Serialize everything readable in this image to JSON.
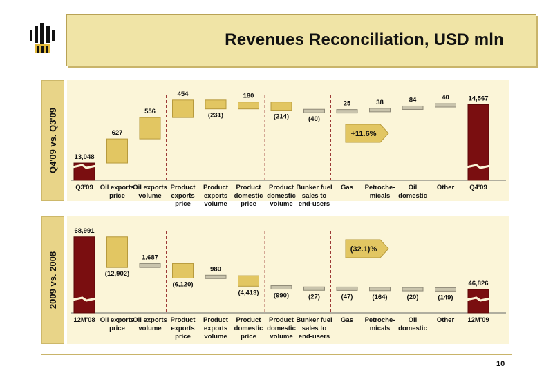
{
  "header": {
    "title": "Revenues Reconciliation, USD mln"
  },
  "colors": {
    "accent": "#7a0e10",
    "step_fill": "#e2c662",
    "step_stroke": "#b79a3c",
    "panel": "#fbf5d8",
    "tab": "#e8d488",
    "divider": "#8b1a1a"
  },
  "page_number": "10",
  "chart_data": [
    {
      "type": "waterfall",
      "side_label": "Q4'09 vs. Q3'09",
      "callout": "+11.6%",
      "categories": [
        [
          "Q3'09"
        ],
        [
          "Oil exports",
          "price"
        ],
        [
          "Oil exports",
          "volume"
        ],
        [
          "Product",
          "exports",
          "price"
        ],
        [
          "Product",
          "exports",
          "volume"
        ],
        [
          "Product",
          "domestic",
          "price"
        ],
        [
          "Product",
          "domestic",
          "volume"
        ],
        [
          "Bunker fuel",
          "sales to",
          "end-users"
        ],
        [
          "Gas"
        ],
        [
          "Petroche-",
          "micals"
        ],
        [
          "Oil",
          "domestic"
        ],
        [
          "Other"
        ],
        [
          "Q4'09"
        ]
      ],
      "values": [
        13048,
        627,
        556,
        454,
        -231,
        180,
        -214,
        -40,
        25,
        38,
        84,
        40,
        14567
      ],
      "labels": [
        "13,048",
        "627",
        "556",
        "454",
        "(231)",
        "180",
        "(214)",
        "(40)",
        "25",
        "38",
        "84",
        "40",
        "14,567"
      ],
      "divider_after": [
        2,
        5,
        7
      ]
    },
    {
      "type": "waterfall",
      "side_label": "2009 vs. 2008",
      "callout": "(32.1)%",
      "categories": [
        [
          "12M'08"
        ],
        [
          "Oil exports",
          "price"
        ],
        [
          "Oil exports",
          "volume"
        ],
        [
          "Product",
          "exports",
          "price"
        ],
        [
          "Product",
          "exports",
          "volume"
        ],
        [
          "Product",
          "domestic",
          "price"
        ],
        [
          "Product",
          "domestic",
          "volume"
        ],
        [
          "Bunker fuel",
          "sales to",
          "end-users"
        ],
        [
          "Gas"
        ],
        [
          "Petroche-",
          "micals"
        ],
        [
          "Oil",
          "domestic"
        ],
        [
          "Other"
        ],
        [
          "12M'09"
        ]
      ],
      "values": [
        68991,
        -12902,
        1687,
        -6120,
        980,
        -4413,
        -990,
        -27,
        -47,
        -164,
        -20,
        -149,
        46826
      ],
      "labels": [
        "68,991",
        "(12,902)",
        "1,687",
        "(6,120)",
        "980",
        "(4,413)",
        "(990)",
        "(27)",
        "(47)",
        "(164)",
        "(20)",
        "(149)",
        "46,826"
      ],
      "divider_after": [
        2,
        5,
        7
      ]
    }
  ]
}
